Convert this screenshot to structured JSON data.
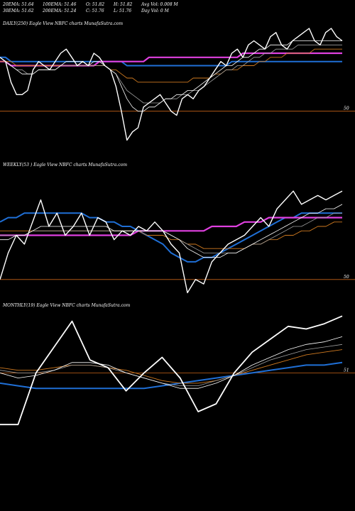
{
  "header": {
    "row1": [
      "20EMA: 51.64",
      "100EMA: 51.46",
      "O: 51.82",
      "H: 51.82",
      "Avg Vol: 0.008  M"
    ],
    "row2": [
      "30EMA: 51.62",
      "200EMA: 51.24",
      "C: 51.76",
      "L: 51.76",
      "Day Vol: 0  M"
    ]
  },
  "colors": {
    "price": "#ffffff",
    "ema20": "#ffffff",
    "ema30": "#a0a0a0",
    "ema50": "#f0c070",
    "ema100": "#d07a20",
    "ema200": "#1f6fd6",
    "baseline": "#e040e0",
    "ref": "#c86418"
  },
  "chart_data": [
    {
      "type": "line",
      "title": "DAILY(250) Eagle  View  NBFC charts MunafaSutra.com",
      "ref_line": {
        "value": 50,
        "label": "50"
      },
      "ylim": [
        49.0,
        52.0
      ],
      "price": [
        51.3,
        51.2,
        50.7,
        50.4,
        50.4,
        50.5,
        51.0,
        51.2,
        51.1,
        51.0,
        51.2,
        51.4,
        51.5,
        51.3,
        51.1,
        51.2,
        51.1,
        51.4,
        51.3,
        51.1,
        51.0,
        50.6,
        50.0,
        49.3,
        49.5,
        49.6,
        50.1,
        50.2,
        50.3,
        50.4,
        50.2,
        50.0,
        49.9,
        50.3,
        50.4,
        50.3,
        50.5,
        50.6,
        50.8,
        51.0,
        51.2,
        51.1,
        51.4,
        51.5,
        51.3,
        51.6,
        51.7,
        51.6,
        51.5,
        51.8,
        51.9,
        51.6,
        51.5,
        51.7,
        51.8,
        51.9,
        52.0,
        51.7,
        51.6,
        51.9,
        52.0,
        51.8,
        51.7
      ],
      "series": [
        {
          "name": "20EMA",
          "values": [
            51.3,
            51.2,
            51.1,
            51.0,
            50.9,
            50.9,
            50.9,
            51.0,
            51.0,
            51.0,
            51.0,
            51.1,
            51.2,
            51.2,
            51.2,
            51.2,
            51.1,
            51.2,
            51.2,
            51.1,
            51.0,
            50.9,
            50.6,
            50.3,
            50.1,
            50.0,
            50.0,
            50.1,
            50.1,
            50.2,
            50.3,
            50.3,
            50.4,
            50.4,
            50.5,
            50.5,
            50.6,
            50.7,
            50.8,
            50.9,
            51.0,
            51.1,
            51.1,
            51.2,
            51.3,
            51.3,
            51.4,
            51.5,
            51.5,
            51.6,
            51.6,
            51.6,
            51.6,
            51.7,
            51.7,
            51.7,
            51.7,
            51.7,
            51.7,
            51.7,
            51.7,
            51.7,
            51.7
          ]
        },
        {
          "name": "30EMA",
          "values": [
            51.3,
            51.2,
            51.1,
            51.0,
            51.0,
            50.9,
            50.9,
            51.0,
            51.0,
            51.0,
            51.0,
            51.1,
            51.1,
            51.1,
            51.1,
            51.1,
            51.1,
            51.1,
            51.1,
            51.1,
            51.0,
            50.9,
            50.7,
            50.5,
            50.4,
            50.3,
            50.2,
            50.2,
            50.2,
            50.2,
            50.3,
            50.3,
            50.3,
            50.4,
            50.4,
            50.5,
            50.5,
            50.6,
            50.7,
            50.8,
            50.9,
            51.0,
            51.0,
            51.1,
            51.1,
            51.2,
            51.3,
            51.3,
            51.4,
            51.4,
            51.5,
            51.5,
            51.5,
            51.5,
            51.6,
            51.6,
            51.6,
            51.6,
            51.6,
            51.6,
            51.6,
            51.6,
            51.6
          ]
        },
        {
          "name": "100EMA",
          "values": [
            51.2,
            51.2,
            51.2,
            51.1,
            51.1,
            51.1,
            51.1,
            51.1,
            51.1,
            51.1,
            51.1,
            51.1,
            51.1,
            51.1,
            51.1,
            51.1,
            51.1,
            51.1,
            51.1,
            51.1,
            51.0,
            51.0,
            50.9,
            50.8,
            50.8,
            50.7,
            50.7,
            50.7,
            50.7,
            50.7,
            50.7,
            50.7,
            50.7,
            50.7,
            50.7,
            50.8,
            50.8,
            50.8,
            50.8,
            50.9,
            50.9,
            51.0,
            51.0,
            51.0,
            51.1,
            51.1,
            51.1,
            51.2,
            51.2,
            51.3,
            51.3,
            51.3,
            51.4,
            51.4,
            51.4,
            51.4,
            51.4,
            51.5,
            51.5,
            51.5,
            51.5,
            51.5,
            51.5
          ]
        },
        {
          "name": "200EMA",
          "values": [
            51.3,
            51.3,
            51.2,
            51.2,
            51.2,
            51.2,
            51.2,
            51.2,
            51.2,
            51.2,
            51.2,
            51.2,
            51.2,
            51.2,
            51.2,
            51.2,
            51.2,
            51.2,
            51.2,
            51.2,
            51.2,
            51.2,
            51.2,
            51.1,
            51.1,
            51.1,
            51.1,
            51.1,
            51.1,
            51.1,
            51.1,
            51.1,
            51.1,
            51.1,
            51.1,
            51.1,
            51.1,
            51.1,
            51.1,
            51.1,
            51.1,
            51.1,
            51.2,
            51.2,
            51.2,
            51.2,
            51.2,
            51.2,
            51.2,
            51.2,
            51.2,
            51.2,
            51.2,
            51.2,
            51.2,
            51.2,
            51.2,
            51.2,
            51.2,
            51.2,
            51.2,
            51.2,
            51.2
          ]
        },
        {
          "name": "baseline",
          "values": [
            51.2,
            51.2,
            51.1,
            51.1,
            51.1,
            51.1,
            51.1,
            51.1,
            51.1,
            51.1,
            51.1,
            51.1,
            51.1,
            51.1,
            51.1,
            51.1,
            51.1,
            51.1,
            51.2,
            51.2,
            51.2,
            51.2,
            51.2,
            51.2,
            51.2,
            51.2,
            51.2,
            51.3,
            51.3,
            51.3,
            51.3,
            51.3,
            51.3,
            51.3,
            51.3,
            51.3,
            51.3,
            51.3,
            51.3,
            51.3,
            51.3,
            51.3,
            51.3,
            51.3,
            51.4,
            51.4,
            51.4,
            51.4,
            51.4,
            51.4,
            51.4,
            51.4,
            51.4,
            51.4,
            51.4,
            51.4,
            51.4,
            51.4,
            51.4,
            51.4,
            51.4,
            51.4,
            51.4
          ]
        }
      ]
    },
    {
      "type": "line",
      "title": "WEEKLY(53                          ) Eagle  View  NBFC charts MunafaSutra.com",
      "ref_line": {
        "value": 50,
        "label": "50"
      },
      "ylim": [
        49.5,
        52.5
      ],
      "price": [
        50.0,
        50.6,
        51.0,
        50.8,
        51.3,
        51.8,
        51.2,
        51.5,
        51.0,
        51.2,
        51.5,
        51.0,
        51.4,
        51.3,
        50.9,
        51.1,
        51.0,
        51.2,
        51.1,
        51.3,
        51.1,
        50.8,
        50.6,
        49.7,
        50.0,
        49.9,
        50.4,
        50.6,
        50.8,
        50.9,
        51.0,
        51.2,
        51.4,
        51.2,
        51.6,
        51.8,
        52.0,
        51.7,
        51.8,
        51.9,
        51.8,
        51.9,
        52.0
      ],
      "series": [
        {
          "name": "20EMA",
          "values": [
            50.9,
            50.9,
            51.0,
            51.0,
            51.1,
            51.2,
            51.2,
            51.2,
            51.2,
            51.2,
            51.2,
            51.2,
            51.2,
            51.2,
            51.1,
            51.1,
            51.1,
            51.1,
            51.1,
            51.1,
            51.1,
            51.0,
            50.9,
            50.7,
            50.6,
            50.5,
            50.5,
            50.5,
            50.6,
            50.6,
            50.7,
            50.8,
            50.9,
            51.0,
            51.1,
            51.2,
            51.3,
            51.4,
            51.5,
            51.5,
            51.6,
            51.6,
            51.7
          ]
        },
        {
          "name": "30EMA",
          "values": [
            51.0,
            51.0,
            51.0,
            51.0,
            51.1,
            51.1,
            51.1,
            51.1,
            51.1,
            51.1,
            51.1,
            51.1,
            51.1,
            51.1,
            51.1,
            51.1,
            51.1,
            51.1,
            51.1,
            51.1,
            51.1,
            51.0,
            50.9,
            50.8,
            50.7,
            50.6,
            50.6,
            50.6,
            50.6,
            50.6,
            50.7,
            50.8,
            50.8,
            50.9,
            51.0,
            51.1,
            51.2,
            51.2,
            51.3,
            51.4,
            51.4,
            51.5,
            51.5
          ]
        },
        {
          "name": "100EMA",
          "values": [
            51.1,
            51.1,
            51.1,
            51.1,
            51.1,
            51.1,
            51.1,
            51.1,
            51.1,
            51.1,
            51.1,
            51.1,
            51.1,
            51.1,
            51.1,
            51.1,
            51.1,
            51.1,
            51.0,
            51.0,
            51.0,
            50.9,
            50.9,
            50.8,
            50.8,
            50.7,
            50.7,
            50.7,
            50.7,
            50.7,
            50.7,
            50.8,
            50.8,
            50.9,
            50.9,
            51.0,
            51.0,
            51.1,
            51.1,
            51.2,
            51.2,
            51.3,
            51.3
          ]
        },
        {
          "name": "200EMA",
          "values": [
            51.3,
            51.4,
            51.4,
            51.5,
            51.5,
            51.5,
            51.5,
            51.5,
            51.5,
            51.5,
            51.5,
            51.4,
            51.4,
            51.3,
            51.3,
            51.2,
            51.2,
            51.1,
            51.0,
            50.9,
            50.8,
            50.6,
            50.5,
            50.4,
            50.4,
            50.5,
            50.5,
            50.6,
            50.7,
            50.8,
            50.9,
            51.0,
            51.1,
            51.2,
            51.3,
            51.4,
            51.4,
            51.5,
            51.5,
            51.5,
            51.5,
            51.5,
            51.5
          ]
        },
        {
          "name": "baseline",
          "values": [
            51.0,
            51.0,
            51.0,
            51.0,
            51.0,
            51.0,
            51.0,
            51.0,
            51.0,
            51.0,
            51.0,
            51.0,
            51.0,
            51.0,
            51.0,
            51.0,
            51.0,
            51.1,
            51.1,
            51.1,
            51.1,
            51.1,
            51.1,
            51.1,
            51.1,
            51.1,
            51.2,
            51.2,
            51.2,
            51.2,
            51.3,
            51.3,
            51.3,
            51.4,
            51.4,
            51.4,
            51.4,
            51.4,
            51.4,
            51.4,
            51.4,
            51.4,
            51.4
          ]
        }
      ]
    },
    {
      "type": "line",
      "title": "MONTHLY(19) Eagle  View  NBFC charts MunafaSutra.com",
      "ref_line": {
        "value": 51,
        "label": "51"
      },
      "ylim": [
        48.4,
        53.4
      ],
      "price": [
        49.0,
        49.0,
        51.0,
        52.0,
        53.0,
        51.5,
        51.2,
        50.3,
        51.0,
        51.6,
        50.8,
        49.5,
        49.8,
        51.0,
        51.8,
        52.3,
        52.8,
        52.7,
        52.9,
        53.2
      ],
      "series": [
        {
          "name": "20EMA",
          "values": [
            51.0,
            50.8,
            50.9,
            51.1,
            51.4,
            51.4,
            51.3,
            51.0,
            50.8,
            50.6,
            50.4,
            50.4,
            50.6,
            50.9,
            51.3,
            51.6,
            51.9,
            52.1,
            52.2,
            52.4
          ]
        },
        {
          "name": "30EMA",
          "values": [
            51.1,
            51.0,
            51.0,
            51.1,
            51.3,
            51.3,
            51.2,
            51.0,
            50.8,
            50.6,
            50.5,
            50.5,
            50.7,
            50.9,
            51.2,
            51.5,
            51.7,
            51.9,
            52.0,
            52.1
          ]
        },
        {
          "name": "100EMA",
          "values": [
            51.2,
            51.1,
            51.1,
            51.2,
            51.3,
            51.3,
            51.2,
            51.1,
            50.9,
            50.7,
            50.6,
            50.6,
            50.7,
            50.9,
            51.1,
            51.3,
            51.5,
            51.7,
            51.8,
            51.9
          ]
        },
        {
          "name": "200EMA",
          "values": [
            50.6,
            50.5,
            50.4,
            50.4,
            50.4,
            50.4,
            50.4,
            50.4,
            50.4,
            50.5,
            50.6,
            50.7,
            50.8,
            50.9,
            51.0,
            51.1,
            51.2,
            51.3,
            51.3,
            51.4
          ]
        }
      ]
    }
  ]
}
